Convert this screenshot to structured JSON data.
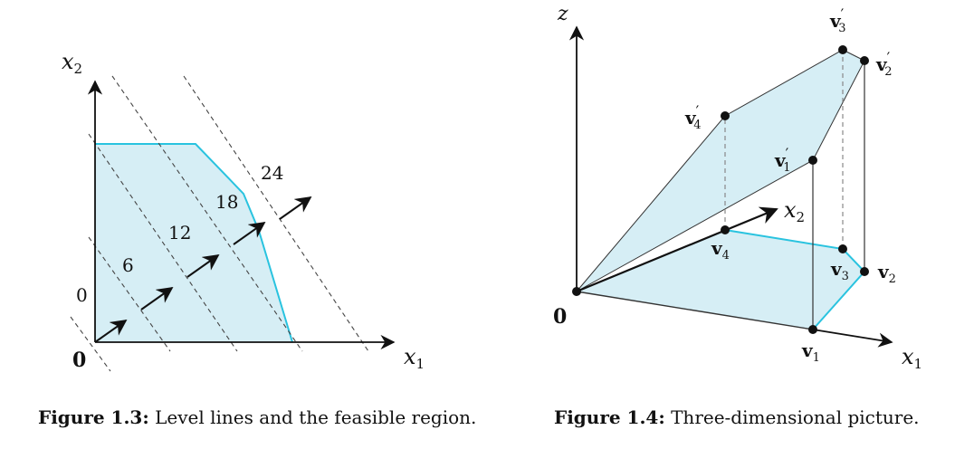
{
  "figure13": {
    "axis_x": "x",
    "axis_x_sub": "1",
    "axis_y": "x",
    "axis_y_sub": "2",
    "origin": "0",
    "level_labels": [
      "0",
      "6",
      "12",
      "18",
      "24"
    ],
    "caption_label": "Figure 1.3:",
    "caption_text": "Level lines and the feasible region."
  },
  "figure14": {
    "axis_z": "z",
    "axis_x1": "x",
    "axis_x1_sub": "1",
    "axis_x2": "x",
    "axis_x2_sub": "2",
    "origin": "0",
    "v1": "v",
    "v1_sub": "1",
    "v2": "v",
    "v2_sub": "2",
    "v3": "v",
    "v3_sub": "3",
    "v4": "v",
    "v4_sub": "4",
    "v1p": "v",
    "v1p_sub": "1",
    "v2p": "v",
    "v2p_sub": "2",
    "v3p": "v",
    "v3p_sub": "3",
    "v4p": "v",
    "v4p_sub": "4",
    "prime": "′",
    "caption_label": "Figure 1.4:",
    "caption_text": "Three-dimensional picture."
  },
  "colors": {
    "region_fill": "#d6eef5",
    "region_edge": "#29c3df",
    "ink": "#111111",
    "level_line": "#444444"
  }
}
